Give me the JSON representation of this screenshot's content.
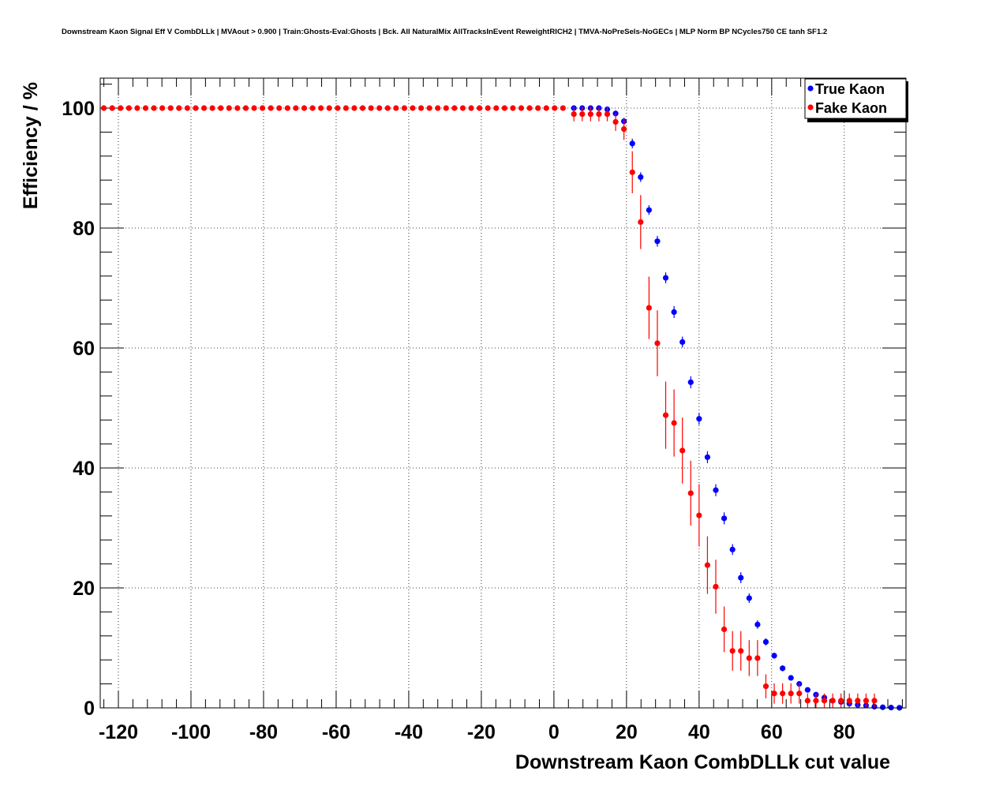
{
  "chart_data": {
    "type": "scatter",
    "title": "Downstream Kaon Signal Eff V CombDLLk | MVAout > 0.900 | Train:Ghosts-Eval:Ghosts | Bck. All NaturalMix AllTracksInEvent ReweightRICH2 | TMVA-NoPreSels-NoGECs | MLP Norm BP NCycles750 CE tanh SF1.2",
    "xlabel": "Downstream Kaon CombDLLk cut value",
    "ylabel": "Efficiency / %",
    "xlim": [
      -125,
      97
    ],
    "ylim": [
      0,
      105
    ],
    "grid": true,
    "legend_position": "top-right",
    "x_ticks": [
      -120,
      -100,
      -80,
      -60,
      -40,
      -20,
      0,
      20,
      40,
      60,
      80
    ],
    "y_ticks": [
      0,
      20,
      40,
      60,
      80,
      100
    ],
    "series": [
      {
        "name": "True Kaon",
        "color": "#0000ff",
        "points": [
          {
            "x": 5.5,
            "y": 100.0,
            "err": 0.0
          },
          {
            "x": 7.8,
            "y": 100.0,
            "err": 0.0
          },
          {
            "x": 10.1,
            "y": 100.0,
            "err": 0.0
          },
          {
            "x": 12.4,
            "y": 100.0,
            "err": 0.0
          },
          {
            "x": 14.7,
            "y": 99.8,
            "err": 0.3
          },
          {
            "x": 17.0,
            "y": 99.1,
            "err": 0.5
          },
          {
            "x": 19.3,
            "y": 97.8,
            "err": 0.6
          },
          {
            "x": 21.6,
            "y": 94.1,
            "err": 0.8
          },
          {
            "x": 23.9,
            "y": 88.5,
            "err": 0.8
          },
          {
            "x": 26.2,
            "y": 83.0,
            "err": 0.8
          },
          {
            "x": 28.5,
            "y": 77.8,
            "err": 0.9
          },
          {
            "x": 30.8,
            "y": 71.7,
            "err": 0.9
          },
          {
            "x": 33.1,
            "y": 66.0,
            "err": 1.0
          },
          {
            "x": 35.4,
            "y": 61.0,
            "err": 0.9
          },
          {
            "x": 37.7,
            "y": 54.3,
            "err": 1.0
          },
          {
            "x": 40.0,
            "y": 48.2,
            "err": 1.0
          },
          {
            "x": 42.3,
            "y": 41.8,
            "err": 1.0
          },
          {
            "x": 44.6,
            "y": 36.3,
            "err": 1.0
          },
          {
            "x": 46.9,
            "y": 31.6,
            "err": 1.0
          },
          {
            "x": 49.2,
            "y": 26.4,
            "err": 0.9
          },
          {
            "x": 51.5,
            "y": 21.7,
            "err": 0.9
          },
          {
            "x": 53.8,
            "y": 18.3,
            "err": 0.8
          },
          {
            "x": 56.1,
            "y": 13.9,
            "err": 0.7
          },
          {
            "x": 58.4,
            "y": 11.0,
            "err": 0.6
          },
          {
            "x": 60.7,
            "y": 8.7,
            "err": 0.5
          },
          {
            "x": 63.0,
            "y": 6.6,
            "err": 0.5
          },
          {
            "x": 65.3,
            "y": 5.0,
            "err": 0.4
          },
          {
            "x": 67.6,
            "y": 4.0,
            "err": 0.4
          },
          {
            "x": 69.9,
            "y": 3.0,
            "err": 0.3
          },
          {
            "x": 72.2,
            "y": 2.2,
            "err": 0.3
          },
          {
            "x": 74.5,
            "y": 1.7,
            "err": 0.2
          },
          {
            "x": 76.8,
            "y": 1.2,
            "err": 0.2
          },
          {
            "x": 79.1,
            "y": 1.0,
            "err": 0.2
          },
          {
            "x": 81.4,
            "y": 0.7,
            "err": 0.1
          },
          {
            "x": 83.7,
            "y": 0.5,
            "err": 0.1
          },
          {
            "x": 86.0,
            "y": 0.4,
            "err": 0.1
          },
          {
            "x": 88.3,
            "y": 0.2,
            "err": 0.1
          },
          {
            "x": 90.6,
            "y": 0.1,
            "err": 0.05
          },
          {
            "x": 92.9,
            "y": 0.05,
            "err": 0.05
          },
          {
            "x": 95.2,
            "y": 0.02,
            "err": 0.02
          }
        ]
      },
      {
        "name": "Fake Kaon",
        "color": "#ff0000",
        "points": [
          {
            "x": 5.5,
            "y": 99.0,
            "err": 1.2
          },
          {
            "x": 7.8,
            "y": 99.0,
            "err": 1.2
          },
          {
            "x": 10.1,
            "y": 99.0,
            "err": 1.2
          },
          {
            "x": 12.4,
            "y": 99.0,
            "err": 1.2
          },
          {
            "x": 14.7,
            "y": 99.0,
            "err": 1.2
          },
          {
            "x": 17.0,
            "y": 97.7,
            "err": 1.5
          },
          {
            "x": 19.3,
            "y": 96.5,
            "err": 1.8
          },
          {
            "x": 21.6,
            "y": 89.3,
            "err": 3.5
          },
          {
            "x": 23.9,
            "y": 81.0,
            "err": 4.5
          },
          {
            "x": 26.2,
            "y": 66.7,
            "err": 5.2
          },
          {
            "x": 28.5,
            "y": 60.8,
            "err": 5.5
          },
          {
            "x": 30.8,
            "y": 48.8,
            "err": 5.6
          },
          {
            "x": 33.1,
            "y": 47.5,
            "err": 5.6
          },
          {
            "x": 35.4,
            "y": 42.9,
            "err": 5.5
          },
          {
            "x": 37.7,
            "y": 35.8,
            "err": 5.4
          },
          {
            "x": 40.0,
            "y": 32.1,
            "err": 5.2
          },
          {
            "x": 42.3,
            "y": 23.8,
            "err": 4.8
          },
          {
            "x": 44.6,
            "y": 20.2,
            "err": 4.5
          },
          {
            "x": 46.9,
            "y": 13.1,
            "err": 3.8
          },
          {
            "x": 49.2,
            "y": 9.5,
            "err": 3.3
          },
          {
            "x": 51.5,
            "y": 9.5,
            "err": 3.3
          },
          {
            "x": 53.8,
            "y": 8.3,
            "err": 3.0
          },
          {
            "x": 56.1,
            "y": 8.3,
            "err": 3.0
          },
          {
            "x": 58.4,
            "y": 3.6,
            "err": 2.0
          },
          {
            "x": 60.7,
            "y": 2.4,
            "err": 1.7
          },
          {
            "x": 63.0,
            "y": 2.4,
            "err": 1.7
          },
          {
            "x": 65.3,
            "y": 2.4,
            "err": 1.7
          },
          {
            "x": 67.6,
            "y": 2.4,
            "err": 1.7
          },
          {
            "x": 69.9,
            "y": 1.2,
            "err": 1.2
          },
          {
            "x": 72.2,
            "y": 1.2,
            "err": 1.2
          },
          {
            "x": 74.5,
            "y": 1.2,
            "err": 1.2
          },
          {
            "x": 76.8,
            "y": 1.2,
            "err": 1.2
          },
          {
            "x": 79.1,
            "y": 1.2,
            "err": 1.2
          },
          {
            "x": 81.4,
            "y": 1.2,
            "err": 1.2
          },
          {
            "x": 83.7,
            "y": 1.2,
            "err": 1.2
          },
          {
            "x": 86.0,
            "y": 1.2,
            "err": 1.2
          },
          {
            "x": 88.3,
            "y": 1.2,
            "err": 1.2
          }
        ]
      }
    ],
    "flat_region": {
      "x_start": -124.0,
      "x_end": 3.2,
      "x_step": 2.3,
      "y": 100.0,
      "color": "#ff0000"
    }
  }
}
